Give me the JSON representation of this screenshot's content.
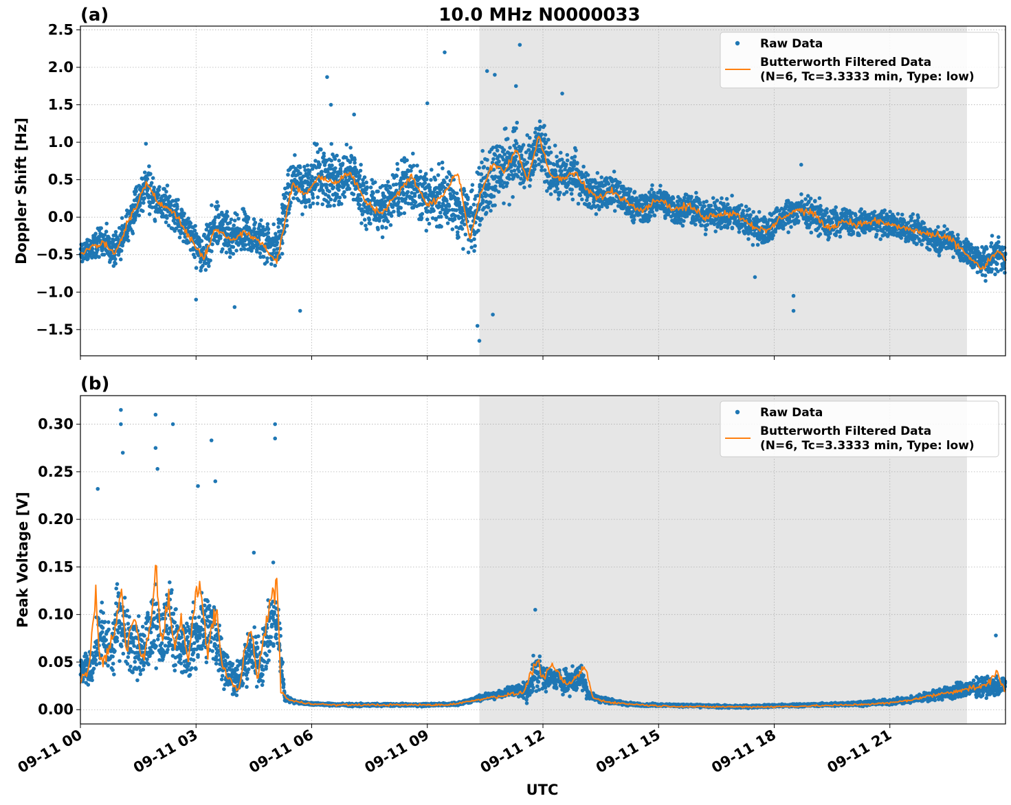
{
  "figure": {
    "title": "10.0 MHz N0000033",
    "xlabel": "UTC"
  },
  "chart_data": [
    {
      "panel_label": "(a)",
      "type": "scatter",
      "title": "10.0 MHz N0000033",
      "xlabel": "",
      "ylabel": "Doppler Shift [Hz]",
      "x_range_hours": [
        0,
        24
      ],
      "ylim": [
        -1.85,
        2.55
      ],
      "yticks": [
        -1.5,
        -1.0,
        -0.5,
        0.0,
        0.5,
        1.0,
        1.5,
        2.0,
        2.5
      ],
      "ytick_labels": [
        "−1.5",
        "−1.0",
        "−0.5",
        "0.0",
        "0.5",
        "1.0",
        "1.5",
        "2.0",
        "2.5"
      ],
      "grid": true,
      "shaded_interval_hours": [
        10.35,
        23.0
      ],
      "legend": {
        "placement": "upper right",
        "entries": [
          "Raw Data",
          "Butterworth Filtered Data",
          "(N=6, Tc=3.3333 min, Type: low)"
        ]
      },
      "series": [
        {
          "name": "Raw Data",
          "kind": "points",
          "color": "#1f77b4",
          "hours": [
            0.0,
            0.3,
            0.6,
            0.9,
            1.2,
            1.5,
            1.7,
            2.0,
            2.4,
            2.8,
            3.2,
            3.5,
            3.9,
            4.3,
            4.7,
            5.1,
            5.5,
            5.8,
            6.2,
            6.6,
            7.0,
            7.4,
            7.8,
            8.2,
            8.6,
            9.0,
            9.4,
            9.8,
            10.1,
            10.4,
            10.7,
            11.0,
            11.3,
            11.6,
            11.9,
            12.2,
            12.5,
            12.8,
            13.1,
            13.4,
            13.8,
            14.2,
            14.6,
            15.0,
            15.4,
            15.8,
            16.2,
            16.6,
            17.0,
            17.4,
            17.8,
            18.2,
            18.6,
            19.0,
            19.4,
            19.8,
            20.2,
            20.6,
            21.0,
            21.4,
            21.8,
            22.2,
            22.6,
            23.0,
            23.4,
            23.8,
            24.0
          ],
          "values": [
            -0.5,
            -0.4,
            -0.3,
            -0.5,
            -0.1,
            0.2,
            0.45,
            0.2,
            0.1,
            -0.2,
            -0.5,
            -0.1,
            -0.3,
            -0.2,
            -0.3,
            -0.4,
            0.5,
            0.4,
            0.6,
            0.5,
            0.6,
            0.2,
            0.1,
            0.3,
            0.5,
            0.2,
            0.3,
            0.1,
            0.0,
            0.3,
            0.6,
            0.7,
            0.8,
            0.6,
            1.0,
            0.6,
            0.5,
            0.6,
            0.4,
            0.3,
            0.35,
            0.2,
            0.1,
            0.25,
            0.1,
            0.15,
            0.0,
            0.05,
            0.0,
            -0.1,
            -0.2,
            0.0,
            0.1,
            0.05,
            -0.1,
            -0.05,
            -0.1,
            -0.05,
            -0.1,
            -0.15,
            -0.2,
            -0.3,
            -0.3,
            -0.5,
            -0.6,
            -0.5,
            -0.5
          ],
          "spread": [
            0.25,
            0.25,
            0.3,
            0.3,
            0.35,
            0.35,
            0.4,
            0.35,
            0.35,
            0.35,
            0.45,
            0.45,
            0.45,
            0.4,
            0.4,
            0.45,
            0.5,
            0.55,
            0.55,
            0.55,
            0.55,
            0.55,
            0.5,
            0.5,
            0.55,
            0.55,
            0.55,
            0.6,
            0.65,
            0.65,
            0.65,
            0.65,
            0.6,
            0.55,
            0.55,
            0.5,
            0.45,
            0.45,
            0.4,
            0.35,
            0.35,
            0.3,
            0.3,
            0.3,
            0.3,
            0.3,
            0.3,
            0.3,
            0.3,
            0.3,
            0.3,
            0.3,
            0.3,
            0.3,
            0.3,
            0.25,
            0.25,
            0.25,
            0.25,
            0.25,
            0.25,
            0.25,
            0.25,
            0.3,
            0.3,
            0.3,
            0.3
          ],
          "outliers": [
            [
              1.7,
              0.98
            ],
            [
              6.4,
              1.87
            ],
            [
              6.5,
              1.5
            ],
            [
              7.1,
              1.37
            ],
            [
              9.0,
              1.52
            ],
            [
              9.45,
              2.2
            ],
            [
              10.35,
              -1.65
            ],
            [
              10.3,
              -1.45
            ],
            [
              10.55,
              1.95
            ],
            [
              10.75,
              1.9
            ],
            [
              11.3,
              1.75
            ],
            [
              11.4,
              2.3
            ],
            [
              12.5,
              1.65
            ],
            [
              3.0,
              -1.1
            ],
            [
              4.0,
              -1.2
            ],
            [
              5.7,
              -1.25
            ],
            [
              10.7,
              -1.3
            ],
            [
              18.5,
              -1.25
            ],
            [
              18.5,
              -1.05
            ],
            [
              18.7,
              0.7
            ],
            [
              17.5,
              -0.8
            ]
          ]
        },
        {
          "name": "Butterworth Filtered Data",
          "kind": "line",
          "color": "#ff7f0e",
          "hours": [
            0.0,
            0.3,
            0.6,
            0.9,
            1.2,
            1.5,
            1.7,
            2.0,
            2.4,
            2.8,
            3.2,
            3.5,
            3.9,
            4.3,
            4.7,
            5.1,
            5.5,
            5.8,
            6.2,
            6.6,
            7.0,
            7.4,
            7.8,
            8.2,
            8.6,
            9.0,
            9.4,
            9.8,
            10.1,
            10.4,
            10.7,
            11.0,
            11.3,
            11.6,
            11.9,
            12.2,
            12.5,
            12.8,
            13.1,
            13.4,
            13.8,
            14.2,
            14.6,
            15.0,
            15.4,
            15.8,
            16.2,
            16.6,
            17.0,
            17.4,
            17.8,
            18.2,
            18.6,
            19.0,
            19.4,
            19.8,
            20.2,
            20.6,
            21.0,
            21.4,
            21.8,
            22.2,
            22.6,
            23.0,
            23.4,
            23.8,
            24.0
          ],
          "values": [
            -0.5,
            -0.4,
            -0.35,
            -0.5,
            -0.1,
            0.2,
            0.45,
            0.2,
            0.1,
            -0.25,
            -0.55,
            -0.15,
            -0.3,
            -0.2,
            -0.35,
            -0.6,
            0.45,
            0.3,
            0.55,
            0.45,
            0.6,
            0.2,
            0.05,
            0.3,
            0.55,
            0.15,
            0.3,
            0.6,
            -0.3,
            0.35,
            0.7,
            0.6,
            0.9,
            0.5,
            1.1,
            0.55,
            0.5,
            0.6,
            0.4,
            0.25,
            0.35,
            0.2,
            0.1,
            0.25,
            0.1,
            0.15,
            0.0,
            0.05,
            0.05,
            -0.1,
            -0.2,
            0.0,
            0.1,
            0.05,
            -0.15,
            -0.05,
            -0.1,
            -0.05,
            -0.1,
            -0.15,
            -0.2,
            -0.25,
            -0.3,
            -0.5,
            -0.7,
            -0.45,
            -0.55
          ]
        }
      ]
    },
    {
      "panel_label": "(b)",
      "type": "scatter",
      "title": "",
      "xlabel": "UTC",
      "ylabel": "Peak Voltage [V]",
      "x_range_hours": [
        0,
        24
      ],
      "xtick_labels": [
        "09-11 00",
        "09-11 03",
        "09-11 06",
        "09-11 09",
        "09-11 12",
        "09-11 15",
        "09-11 18",
        "09-11 21"
      ],
      "xtick_hours": [
        0,
        3,
        6,
        9,
        12,
        15,
        18,
        21
      ],
      "ylim": [
        -0.015,
        0.33
      ],
      "yticks": [
        0.0,
        0.05,
        0.1,
        0.15,
        0.2,
        0.25,
        0.3
      ],
      "ytick_labels": [
        "0.00",
        "0.05",
        "0.10",
        "0.15",
        "0.20",
        "0.25",
        "0.30"
      ],
      "grid": true,
      "shaded_interval_hours": [
        10.35,
        23.0
      ],
      "legend": {
        "placement": "upper right",
        "entries": [
          "Raw Data",
          "Butterworth Filtered Data",
          "(N=6, Tc=3.3333 min, Type: low)"
        ]
      },
      "series": [
        {
          "name": "Raw Data",
          "kind": "points",
          "color": "#1f77b4",
          "hours": [
            0.0,
            0.3,
            0.5,
            0.8,
            1.0,
            1.3,
            1.6,
            1.9,
            2.1,
            2.3,
            2.6,
            2.9,
            3.2,
            3.5,
            3.8,
            4.1,
            4.4,
            4.7,
            5.0,
            5.15,
            5.3,
            5.6,
            6.0,
            7.0,
            8.0,
            9.0,
            9.8,
            10.3,
            10.8,
            11.3,
            11.6,
            11.8,
            12.1,
            12.4,
            12.7,
            13.0,
            13.2,
            13.6,
            14.0,
            14.5,
            15.0,
            16.0,
            17.0,
            18.0,
            19.0,
            20.0,
            21.0,
            21.5,
            22.0,
            22.5,
            23.0,
            23.5,
            24.0
          ],
          "values": [
            0.04,
            0.045,
            0.08,
            0.06,
            0.1,
            0.07,
            0.06,
            0.09,
            0.07,
            0.1,
            0.06,
            0.07,
            0.09,
            0.08,
            0.04,
            0.03,
            0.06,
            0.05,
            0.1,
            0.08,
            0.012,
            0.008,
            0.006,
            0.005,
            0.005,
            0.005,
            0.006,
            0.012,
            0.016,
            0.02,
            0.02,
            0.04,
            0.035,
            0.03,
            0.03,
            0.035,
            0.015,
            0.01,
            0.007,
            0.005,
            0.005,
            0.004,
            0.003,
            0.004,
            0.005,
            0.006,
            0.008,
            0.01,
            0.014,
            0.018,
            0.022,
            0.024,
            0.026
          ],
          "spread": [
            0.02,
            0.025,
            0.05,
            0.04,
            0.06,
            0.05,
            0.04,
            0.06,
            0.05,
            0.06,
            0.04,
            0.05,
            0.06,
            0.05,
            0.03,
            0.025,
            0.04,
            0.04,
            0.06,
            0.05,
            0.005,
            0.002,
            0.002,
            0.002,
            0.002,
            0.002,
            0.002,
            0.004,
            0.006,
            0.01,
            0.015,
            0.025,
            0.02,
            0.018,
            0.018,
            0.02,
            0.008,
            0.004,
            0.003,
            0.002,
            0.002,
            0.002,
            0.002,
            0.002,
            0.002,
            0.003,
            0.004,
            0.005,
            0.007,
            0.01,
            0.012,
            0.014,
            0.015
          ],
          "outliers": [
            [
              1.05,
              0.315
            ],
            [
              1.05,
              0.3
            ],
            [
              1.1,
              0.27
            ],
            [
              1.95,
              0.31
            ],
            [
              1.95,
              0.275
            ],
            [
              2.4,
              0.3
            ],
            [
              3.4,
              0.283
            ],
            [
              5.05,
              0.3
            ],
            [
              5.05,
              0.285
            ],
            [
              0.45,
              0.232
            ],
            [
              2.0,
              0.253
            ],
            [
              3.05,
              0.235
            ],
            [
              3.5,
              0.24
            ],
            [
              4.5,
              0.165
            ],
            [
              11.8,
              0.105
            ],
            [
              23.75,
              0.078
            ]
          ]
        },
        {
          "name": "Butterworth Filtered Data",
          "kind": "line",
          "color": "#ff7f0e",
          "hours": [
            0.0,
            0.2,
            0.4,
            0.5,
            0.7,
            0.9,
            1.05,
            1.2,
            1.4,
            1.6,
            1.8,
            1.95,
            2.1,
            2.3,
            2.45,
            2.6,
            2.8,
            3.0,
            3.1,
            3.3,
            3.5,
            3.7,
            3.9,
            4.1,
            4.3,
            4.45,
            4.6,
            4.8,
            5.0,
            5.1,
            5.2,
            5.4,
            5.8,
            6.5,
            7.5,
            8.5,
            9.5,
            10.0,
            10.5,
            11.0,
            11.5,
            11.7,
            11.85,
            12.0,
            12.3,
            12.6,
            12.9,
            13.1,
            13.3,
            13.7,
            14.2,
            15.0,
            16.0,
            17.0,
            18.0,
            19.0,
            20.0,
            21.0,
            21.5,
            22.0,
            22.5,
            23.0,
            23.5,
            23.75,
            24.0
          ],
          "values": [
            0.03,
            0.04,
            0.12,
            0.05,
            0.06,
            0.08,
            0.13,
            0.06,
            0.1,
            0.05,
            0.08,
            0.15,
            0.07,
            0.12,
            0.06,
            0.1,
            0.05,
            0.12,
            0.13,
            0.06,
            0.11,
            0.04,
            0.03,
            0.02,
            0.07,
            0.08,
            0.03,
            0.09,
            0.12,
            0.14,
            0.02,
            0.01,
            0.007,
            0.005,
            0.005,
            0.005,
            0.005,
            0.008,
            0.012,
            0.015,
            0.018,
            0.04,
            0.05,
            0.035,
            0.045,
            0.025,
            0.035,
            0.045,
            0.012,
            0.008,
            0.006,
            0.004,
            0.003,
            0.003,
            0.003,
            0.004,
            0.005,
            0.007,
            0.01,
            0.014,
            0.018,
            0.022,
            0.025,
            0.04,
            0.02
          ]
        }
      ]
    }
  ]
}
